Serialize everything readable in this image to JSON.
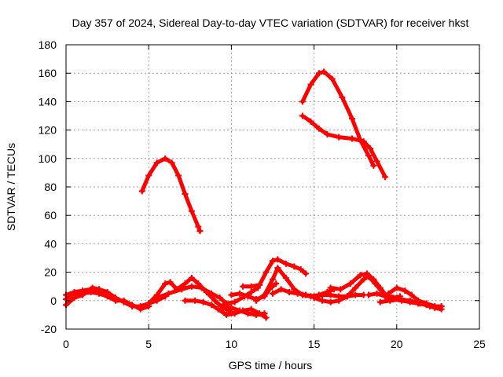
{
  "chart_data": {
    "type": "scatter",
    "title": "Day 357 of 2024, Sidereal Day-to-day VTEC variation (SDTVAR) for receiver hkst",
    "xlabel": "GPS time / hours",
    "ylabel": "SDTVAR / TECUs",
    "xlim": [
      0,
      25
    ],
    "ylim": [
      -20,
      180
    ],
    "xticks": [
      0,
      5,
      10,
      15,
      20,
      25
    ],
    "yticks": [
      -20,
      0,
      20,
      40,
      60,
      80,
      100,
      120,
      140,
      160,
      180
    ],
    "grid": true,
    "color": "#ff0000",
    "series": [
      {
        "name": "arc-upper-1",
        "points": [
          [
            4.6,
            77
          ],
          [
            5.0,
            88
          ],
          [
            5.5,
            97
          ],
          [
            6.0,
            100
          ],
          [
            6.4,
            97
          ],
          [
            6.8,
            88
          ],
          [
            7.2,
            75
          ],
          [
            7.6,
            63
          ],
          [
            8.0,
            52
          ],
          [
            8.1,
            49
          ]
        ]
      },
      {
        "name": "arc-upper-2",
        "points": [
          [
            14.3,
            140
          ],
          [
            14.8,
            152
          ],
          [
            15.3,
            160
          ],
          [
            15.6,
            161
          ],
          [
            16.1,
            156
          ],
          [
            16.7,
            143
          ],
          [
            17.3,
            128
          ],
          [
            17.8,
            113
          ],
          [
            18.3,
            102
          ],
          [
            18.6,
            95
          ]
        ]
      },
      {
        "name": "arc-upper-3",
        "points": [
          [
            14.3,
            130
          ],
          [
            14.8,
            126
          ],
          [
            15.3,
            121
          ],
          [
            15.8,
            117
          ],
          [
            16.5,
            115
          ],
          [
            17.3,
            114
          ],
          [
            18.0,
            112
          ],
          [
            18.4,
            107
          ],
          [
            18.8,
            98
          ],
          [
            19.3,
            87
          ]
        ]
      },
      {
        "name": "low-1",
        "points": [
          [
            0,
            4
          ],
          [
            0.5,
            6
          ],
          [
            1.0,
            7
          ],
          [
            1.5,
            8
          ],
          [
            2.0,
            8
          ],
          [
            2.5,
            6
          ],
          [
            3.0,
            2
          ],
          [
            3.5,
            -1
          ],
          [
            4.0,
            -4
          ],
          [
            4.5,
            -4
          ],
          [
            5.0,
            -2
          ],
          [
            5.5,
            0
          ],
          [
            6.0,
            3
          ]
        ]
      },
      {
        "name": "low-2",
        "points": [
          [
            0,
            1
          ],
          [
            0.5,
            4
          ],
          [
            1.0,
            5
          ],
          [
            1.5,
            6
          ],
          [
            2.0,
            5
          ],
          [
            2.5,
            3
          ],
          [
            3.0,
            0
          ],
          [
            3.5,
            0
          ],
          [
            4.0,
            -3
          ],
          [
            4.5,
            -6
          ],
          [
            5.0,
            -4
          ]
        ]
      },
      {
        "name": "low-3",
        "points": [
          [
            0,
            -3
          ],
          [
            0.5,
            2
          ],
          [
            1.0,
            4
          ],
          [
            1.6,
            9
          ],
          [
            2.0,
            8
          ],
          [
            2.5,
            5
          ]
        ]
      },
      {
        "name": "low-4",
        "points": [
          [
            5.0,
            -2
          ],
          [
            5.5,
            4
          ],
          [
            6.0,
            12
          ],
          [
            6.3,
            13
          ],
          [
            6.7,
            8
          ],
          [
            7.2,
            12
          ],
          [
            7.6,
            16
          ],
          [
            8.0,
            12
          ],
          [
            8.5,
            6
          ],
          [
            9.0,
            0
          ],
          [
            9.5,
            -5
          ],
          [
            10.0,
            -8
          ]
        ]
      },
      {
        "name": "low-5",
        "points": [
          [
            5.5,
            2
          ],
          [
            6.2,
            5
          ],
          [
            7.0,
            8
          ],
          [
            7.6,
            10
          ],
          [
            8.2,
            9
          ],
          [
            8.8,
            5
          ],
          [
            9.3,
            2
          ],
          [
            9.7,
            -2
          ],
          [
            10.2,
            -1
          ],
          [
            10.8,
            3
          ],
          [
            11.2,
            6
          ],
          [
            11.6,
            9
          ]
        ]
      },
      {
        "name": "low-6",
        "points": [
          [
            7.2,
            0
          ],
          [
            7.8,
            0
          ],
          [
            8.3,
            -1
          ],
          [
            8.8,
            -3
          ],
          [
            9.2,
            -6
          ],
          [
            9.7,
            -10
          ],
          [
            10.2,
            -9
          ],
          [
            10.7,
            -7
          ],
          [
            11.2,
            -6
          ],
          [
            11.7,
            -9
          ],
          [
            12.1,
            -12
          ]
        ]
      },
      {
        "name": "low-7",
        "points": [
          [
            9.5,
            -3
          ],
          [
            10.0,
            -5
          ],
          [
            10.5,
            -7
          ],
          [
            11.0,
            -9
          ],
          [
            11.5,
            -10
          ],
          [
            12.0,
            -9
          ]
        ]
      },
      {
        "name": "low-8",
        "points": [
          [
            10.0,
            4
          ],
          [
            10.5,
            5
          ],
          [
            11.0,
            3
          ],
          [
            11.5,
            1
          ],
          [
            12.0,
            3
          ],
          [
            12.3,
            8
          ],
          [
            12.7,
            12
          ]
        ]
      },
      {
        "name": "low-9",
        "points": [
          [
            10.7,
            10
          ],
          [
            11.2,
            10
          ],
          [
            11.7,
            11
          ],
          [
            12.1,
            20
          ],
          [
            12.5,
            28
          ],
          [
            12.8,
            29
          ],
          [
            13.3,
            26
          ],
          [
            13.8,
            24
          ],
          [
            14.2,
            22
          ],
          [
            14.5,
            19
          ]
        ]
      },
      {
        "name": "low-10",
        "points": [
          [
            11.5,
            0
          ],
          [
            12.0,
            4
          ],
          [
            12.5,
            15
          ],
          [
            12.8,
            23
          ],
          [
            13.3,
            16
          ],
          [
            13.8,
            8
          ],
          [
            14.3,
            4
          ],
          [
            14.8,
            3
          ],
          [
            15.3,
            4
          ],
          [
            15.8,
            6
          ],
          [
            16.2,
            8
          ]
        ]
      },
      {
        "name": "low-11",
        "points": [
          [
            12.5,
            5
          ],
          [
            13.0,
            8
          ],
          [
            13.5,
            6
          ],
          [
            14.0,
            5
          ],
          [
            14.5,
            4
          ],
          [
            15.0,
            3
          ],
          [
            15.5,
            4
          ],
          [
            16.0,
            4
          ],
          [
            16.5,
            3
          ],
          [
            17.0,
            3
          ],
          [
            17.5,
            4
          ],
          [
            18.0,
            4
          ]
        ]
      },
      {
        "name": "low-12",
        "points": [
          [
            15.0,
            2
          ],
          [
            15.5,
            0
          ],
          [
            16.0,
            -1
          ],
          [
            16.5,
            0
          ],
          [
            17.0,
            3
          ],
          [
            17.5,
            9
          ],
          [
            18.0,
            15
          ],
          [
            18.3,
            17
          ],
          [
            18.7,
            12
          ],
          [
            19.2,
            5
          ],
          [
            19.7,
            2
          ],
          [
            20.0,
            2
          ]
        ]
      },
      {
        "name": "low-13",
        "points": [
          [
            16.0,
            9
          ],
          [
            16.6,
            8
          ],
          [
            17.2,
            12
          ],
          [
            17.8,
            18
          ],
          [
            18.2,
            19
          ],
          [
            18.6,
            15
          ],
          [
            19.0,
            9
          ],
          [
            19.4,
            3
          ],
          [
            19.8,
            2
          ],
          [
            20.2,
            3
          ]
        ]
      },
      {
        "name": "low-14",
        "points": [
          [
            18.3,
            4
          ],
          [
            18.8,
            5
          ],
          [
            19.3,
            3
          ],
          [
            19.8,
            1
          ],
          [
            20.3,
            0
          ],
          [
            20.8,
            -1
          ],
          [
            21.3,
            -2
          ],
          [
            21.8,
            -3
          ],
          [
            22.3,
            -5
          ],
          [
            22.7,
            -6
          ]
        ]
      },
      {
        "name": "low-15",
        "points": [
          [
            19.5,
            5
          ],
          [
            20.0,
            9
          ],
          [
            20.5,
            7
          ],
          [
            20.9,
            4
          ],
          [
            21.3,
            0
          ],
          [
            21.8,
            -2
          ],
          [
            22.3,
            -4
          ],
          [
            22.7,
            -4
          ]
        ]
      },
      {
        "name": "low-16",
        "points": [
          [
            19.0,
            -1
          ],
          [
            19.6,
            0
          ],
          [
            20.2,
            1
          ],
          [
            20.8,
            0
          ],
          [
            21.4,
            -2
          ],
          [
            22.0,
            -4
          ],
          [
            22.6,
            -5
          ]
        ]
      }
    ]
  }
}
